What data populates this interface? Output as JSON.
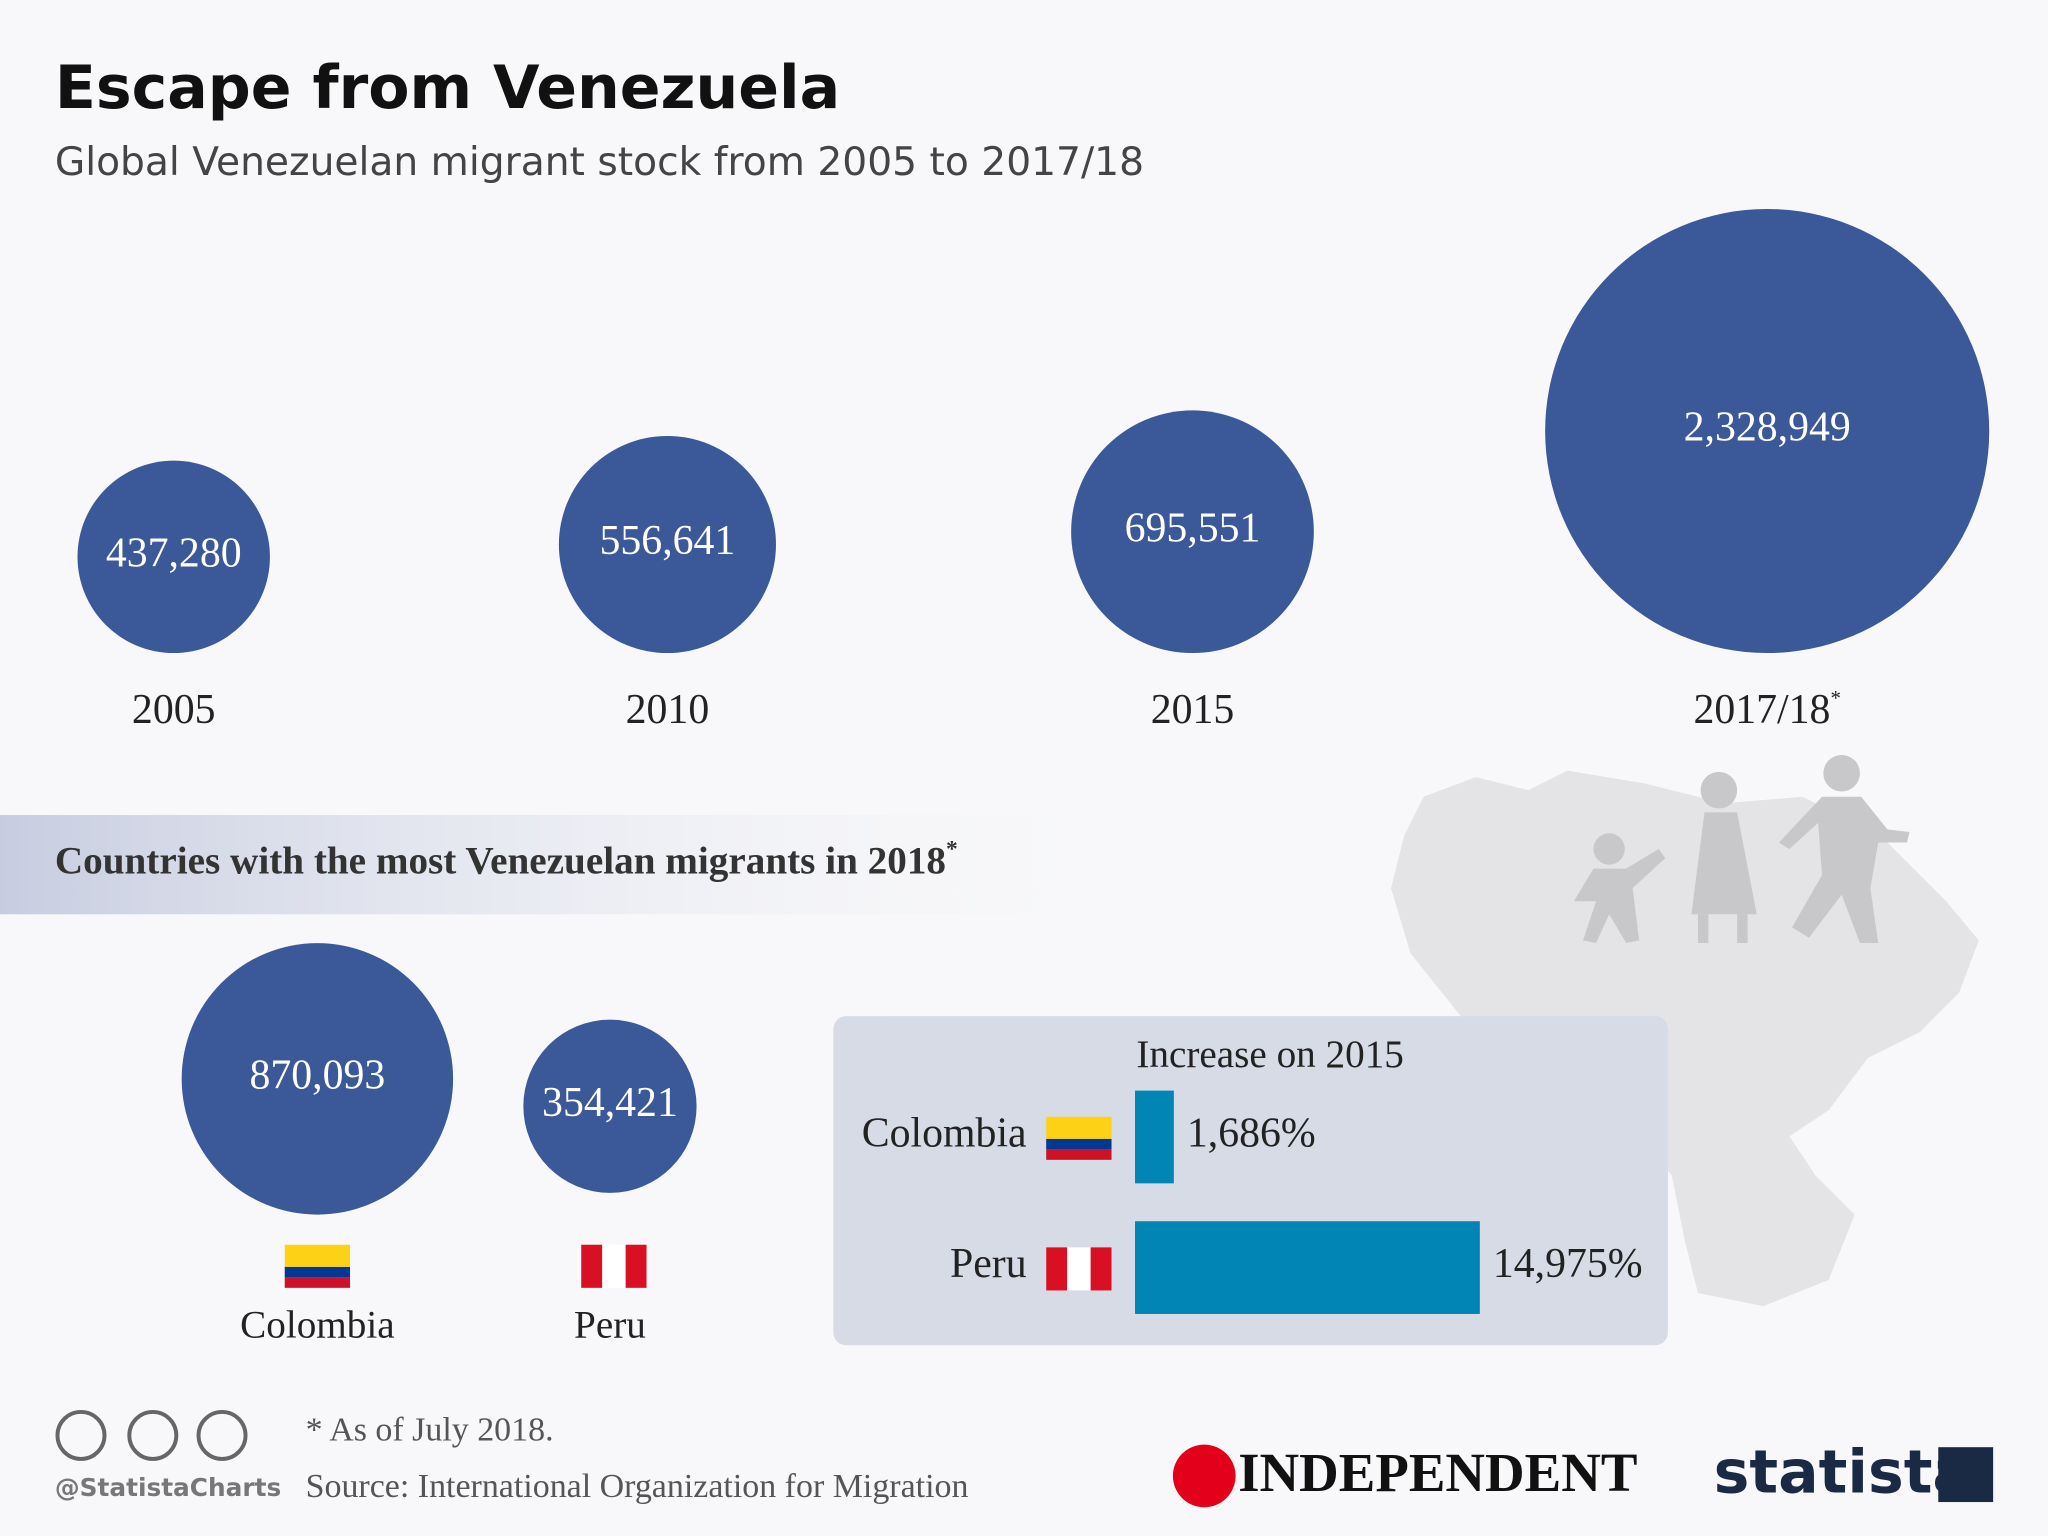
{
  "title": "Escape from Venezuela",
  "subtitle": "Global Venezuelan migrant stock from 2005 to 2017/18",
  "chart_data": [
    {
      "type": "bubble",
      "categories": [
        "2005",
        "2010",
        "2015",
        "2017/18"
      ],
      "superscripts": [
        null,
        null,
        null,
        "*"
      ],
      "values": [
        437280,
        556641,
        695551,
        2328949
      ],
      "value_labels": [
        "437,280",
        "556,641",
        "695,551",
        "2,328,949"
      ],
      "color": "#3b5898"
    },
    {
      "type": "bubble",
      "title": "Countries with the most Venezuelan migrants in 2018",
      "title_superscript": "*",
      "categories": [
        "Colombia",
        "Peru"
      ],
      "values": [
        870093,
        354421
      ],
      "value_labels": [
        "870,093",
        "354,421"
      ],
      "color": "#3b5898"
    },
    {
      "type": "bar",
      "title": "Increase on 2015",
      "categories": [
        "Colombia",
        "Peru"
      ],
      "values": [
        1686,
        14975
      ],
      "value_labels": [
        "1,686%",
        "14,975%"
      ],
      "color": "#0085b5"
    }
  ],
  "footnote": "* As of July 2018.",
  "source": "Source: International Organization for Migration",
  "handle": "@StatistaCharts",
  "logos": [
    "INDEPENDENT",
    "statista"
  ]
}
